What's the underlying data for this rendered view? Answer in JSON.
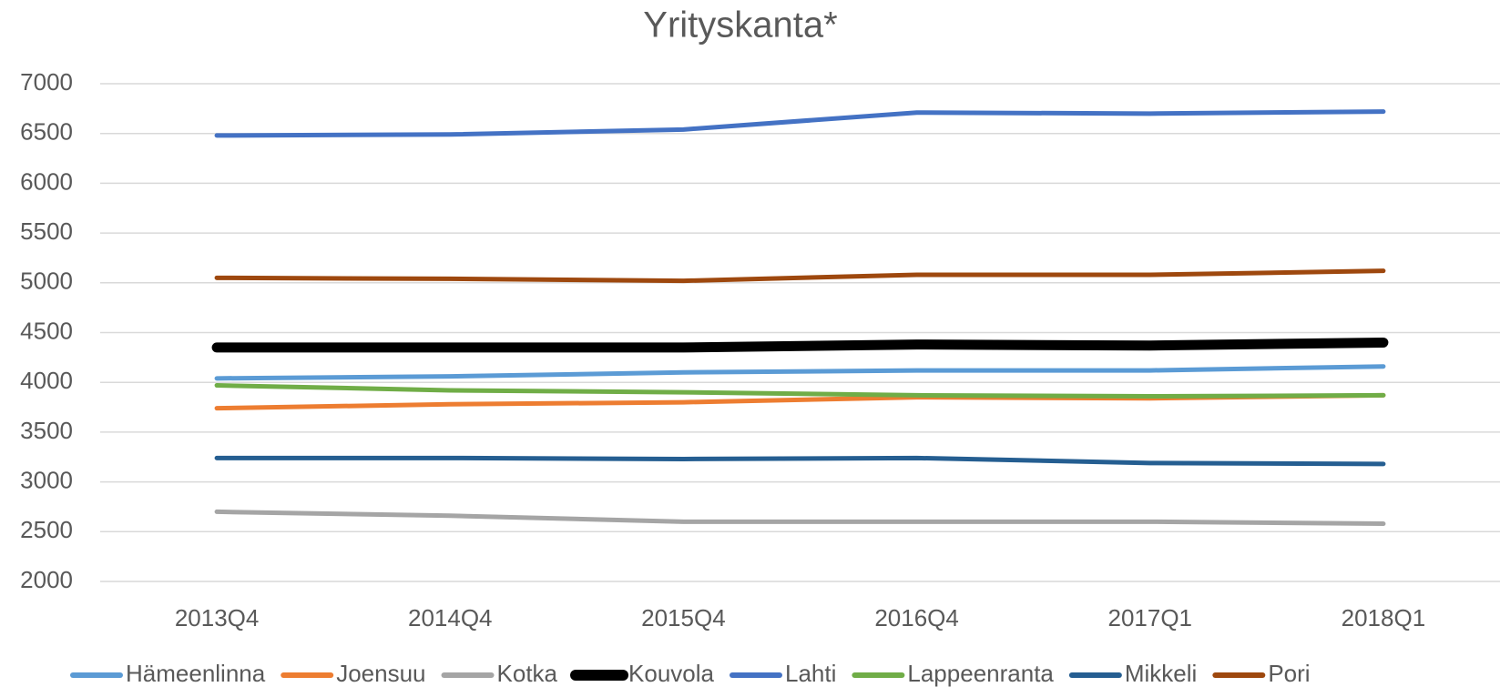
{
  "chart_data": {
    "type": "line",
    "title": "Yrityskanta*",
    "categories": [
      "2013Q4",
      "2014Q4",
      "2015Q4",
      "2016Q4",
      "2017Q1",
      "2018Q1"
    ],
    "ylim": [
      2000,
      7000
    ],
    "yticks": [
      2000,
      2500,
      3000,
      3500,
      4000,
      4500,
      5000,
      5500,
      6000,
      6500,
      7000
    ],
    "grid": true,
    "legend": "bottom",
    "series": [
      {
        "name": "Hämeenlinna",
        "color": "#5b9bd5",
        "width": 5,
        "values": [
          4040,
          4060,
          4100,
          4120,
          4120,
          4160
        ]
      },
      {
        "name": "Joensuu",
        "color": "#ed7d31",
        "width": 5,
        "values": [
          3740,
          3780,
          3800,
          3850,
          3840,
          3870
        ]
      },
      {
        "name": "Kotka",
        "color": "#a5a5a5",
        "width": 5,
        "values": [
          2700,
          2660,
          2600,
          2600,
          2600,
          2580
        ]
      },
      {
        "name": "Kouvola",
        "color": "#000000",
        "width": 11,
        "values": [
          4350,
          4350,
          4350,
          4380,
          4370,
          4400
        ]
      },
      {
        "name": "Lahti",
        "color": "#4472c4",
        "width": 5,
        "values": [
          6480,
          6490,
          6540,
          6710,
          6700,
          6720
        ]
      },
      {
        "name": "Lappeenranta",
        "color": "#70ad47",
        "width": 5,
        "values": [
          3970,
          3920,
          3900,
          3870,
          3860,
          3870
        ]
      },
      {
        "name": "Mikkeli",
        "color": "#255e91",
        "width": 5,
        "values": [
          3240,
          3240,
          3230,
          3240,
          3190,
          3180
        ]
      },
      {
        "name": "Pori",
        "color": "#9e480e",
        "width": 5,
        "values": [
          5050,
          5040,
          5020,
          5080,
          5080,
          5120
        ]
      }
    ]
  }
}
